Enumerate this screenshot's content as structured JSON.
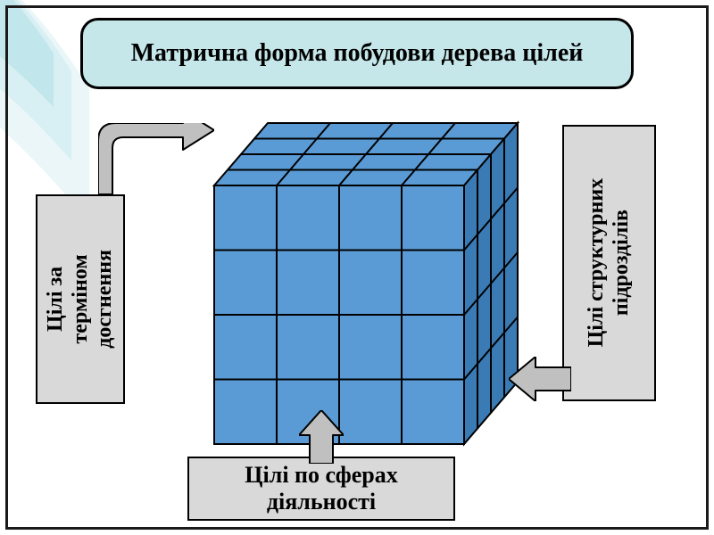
{
  "title": "Матрична форма побудови дерева цілей",
  "labels": {
    "left": "Цілі за\nтерміном\nдосгнення",
    "right": "Цілі структурних\nпідрозділів",
    "bottom": "Цілі по сферах\nдіяльності"
  },
  "cube": {
    "grid": 4,
    "face_top_fill": "#5a9bd5",
    "face_front_fill": "#5a9bd5",
    "face_side_fill": "#3a7bb5",
    "stroke": "#000000",
    "stroke_width": 2
  },
  "arrows": {
    "fill": "#c0c0c0",
    "stroke": "#000000",
    "stroke_width": 2
  },
  "title_bg": "#c5e7ea",
  "title_border": "#000000",
  "label_bg": "#d9d9d9",
  "label_border": "#000000",
  "swoosh_colors": [
    "#bfe4ea",
    "#d6eef2",
    "#e8f5f7"
  ],
  "background": "#ffffff",
  "frame_color": "#1a1a1a",
  "font_family": "Times New Roman",
  "title_fontsize": 28,
  "label_fontsize": 24,
  "bottom_label_fontsize": 26
}
